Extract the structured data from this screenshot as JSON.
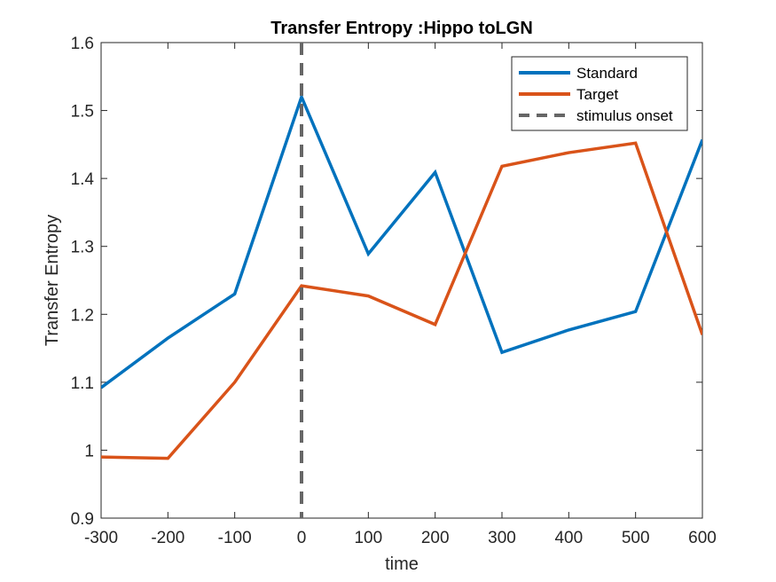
{
  "chart_data": {
    "type": "line",
    "title": "Transfer Entropy :Hippo toLGN",
    "xlabel": "time",
    "ylabel": "Transfer Entropy",
    "x": [
      -300,
      -200,
      -100,
      0,
      100,
      200,
      300,
      400,
      500,
      600
    ],
    "xlim": [
      -300,
      600
    ],
    "ylim": [
      0.9,
      1.6
    ],
    "xticks": [
      -300,
      -200,
      -100,
      0,
      100,
      200,
      300,
      400,
      500,
      600
    ],
    "xtick_labels": [
      "-300",
      "-200",
      "-100",
      "0",
      "100",
      "200",
      "300",
      "400",
      "500",
      "600"
    ],
    "yticks": [
      0.9,
      1.0,
      1.1,
      1.2,
      1.3,
      1.4,
      1.5,
      1.6
    ],
    "ytick_labels": [
      "0.9",
      "1",
      "1.1",
      "1.2",
      "1.3",
      "1.4",
      "1.5",
      "1.6"
    ],
    "grid": false,
    "legend_position": "top-right",
    "series": [
      {
        "name": "Standard",
        "color": "#0072BD",
        "values": [
          1.092,
          1.165,
          1.23,
          1.52,
          1.289,
          1.409,
          1.144,
          1.177,
          1.204,
          1.457
        ]
      },
      {
        "name": "Target",
        "color": "#D95319",
        "values": [
          0.99,
          0.988,
          1.1,
          1.242,
          1.227,
          1.185,
          1.418,
          1.438,
          1.452,
          1.17
        ]
      }
    ],
    "reference_lines": [
      {
        "name": "stimulus onset",
        "x": 0,
        "style": "dashed",
        "color": "#666666"
      }
    ]
  }
}
